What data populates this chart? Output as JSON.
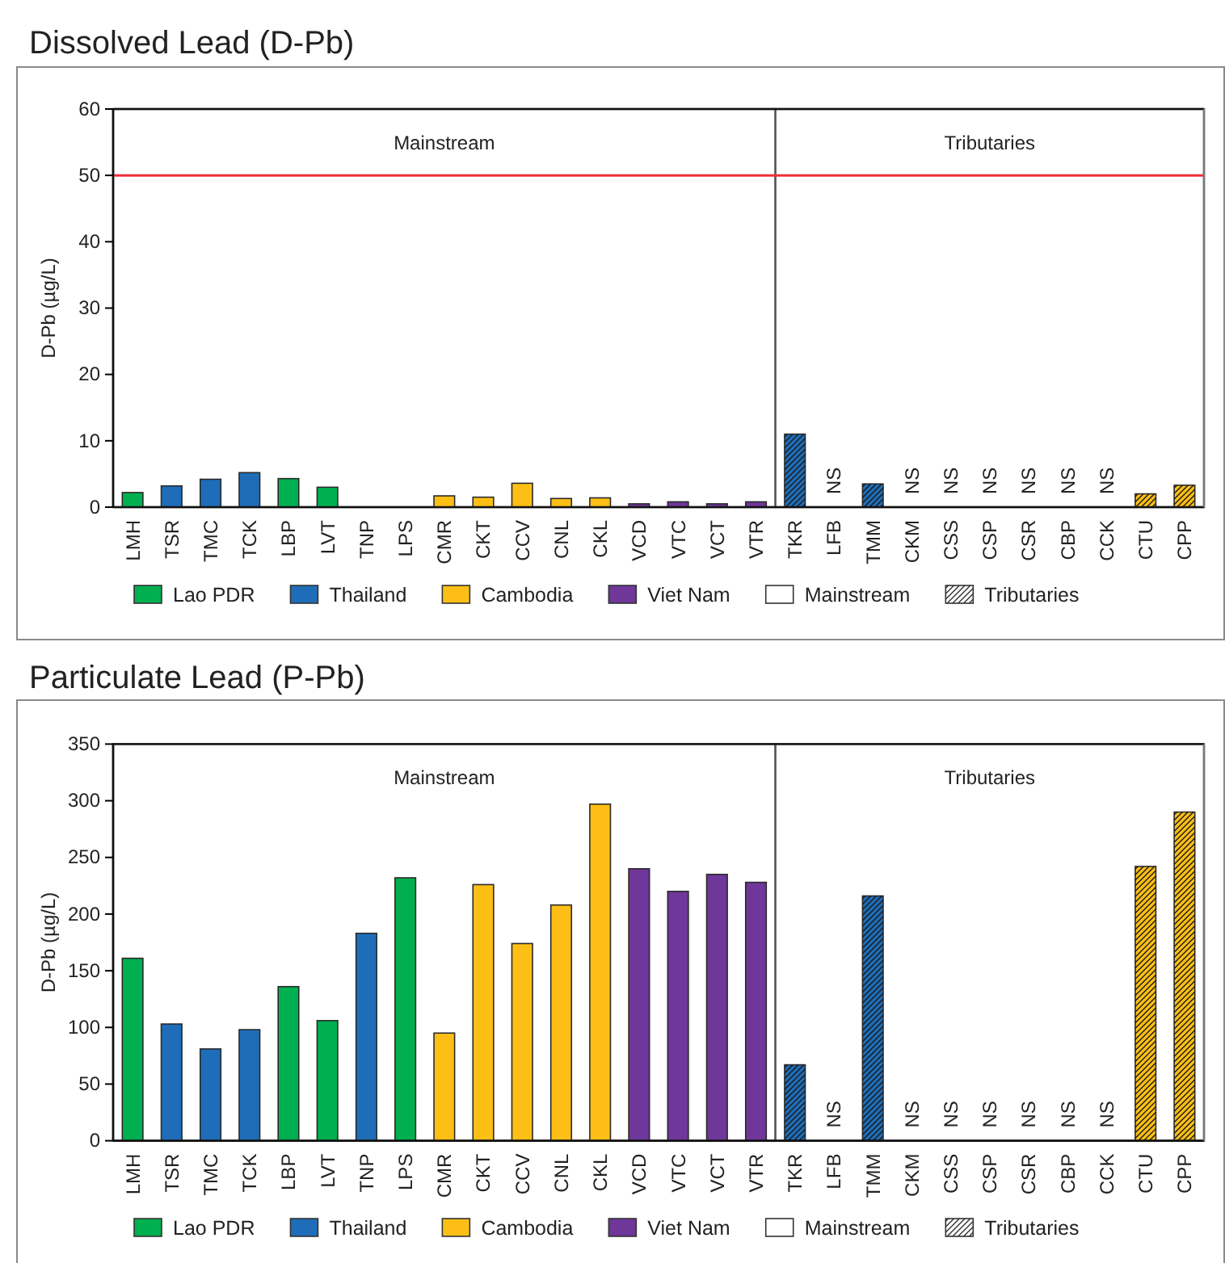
{
  "chart_data": [
    {
      "type": "bar",
      "title": "Dissolved Lead (D-Pb)",
      "ylabel": "D-Pb (µg/L)",
      "categories": [
        "LMH",
        "TSR",
        "TMC",
        "TCK",
        "LBP",
        "LVT",
        "TNP",
        "LPS",
        "CMR",
        "CKT",
        "CCV",
        "CNL",
        "CKL",
        "VCD",
        "VTC",
        "VCT",
        "VTR",
        "TKR",
        "LFB",
        "TMM",
        "CKM",
        "CSS",
        "CSP",
        "CSR",
        "CBP",
        "CCK",
        "CTU",
        "CPP"
      ],
      "series": [
        {
          "name": "Lao PDR",
          "color": "#00b050",
          "values": [
            2.2,
            null,
            null,
            null,
            4.3,
            3.0,
            null,
            null,
            null,
            null,
            null,
            null,
            null,
            null,
            null,
            null,
            null,
            null,
            null,
            null,
            null,
            null,
            null,
            null,
            null,
            null,
            null,
            null
          ],
          "value_labels": [
            null,
            null,
            null,
            null,
            null,
            null,
            null,
            null,
            null,
            null,
            null,
            null,
            null,
            null,
            null,
            null,
            null,
            null,
            "NS",
            null,
            null,
            null,
            null,
            null,
            null,
            null,
            null,
            null
          ]
        },
        {
          "name": "Thailand",
          "color": "#1f6db8",
          "values": [
            null,
            3.2,
            4.2,
            5.2,
            null,
            null,
            null,
            null,
            null,
            null,
            null,
            null,
            null,
            null,
            null,
            null,
            null,
            11.0,
            null,
            3.5,
            null,
            null,
            null,
            null,
            null,
            null,
            null,
            null
          ]
        },
        {
          "name": "Cambodia",
          "color": "#fdbf16",
          "values": [
            null,
            null,
            null,
            null,
            null,
            null,
            null,
            null,
            1.7,
            1.5,
            3.6,
            1.3,
            1.4,
            null,
            null,
            null,
            null,
            null,
            null,
            null,
            null,
            null,
            null,
            null,
            null,
            null,
            2.0,
            3.3
          ],
          "value_labels": [
            null,
            null,
            null,
            null,
            null,
            null,
            null,
            null,
            null,
            null,
            null,
            null,
            null,
            null,
            null,
            null,
            null,
            null,
            null,
            null,
            "NS",
            "NS",
            "NS",
            "NS",
            "NS",
            "NS",
            null,
            null
          ]
        },
        {
          "name": "Viet Nam",
          "color": "#6f3799",
          "values": [
            null,
            null,
            null,
            null,
            null,
            null,
            null,
            null,
            null,
            null,
            null,
            null,
            null,
            0.5,
            0.8,
            0.5,
            0.8,
            null,
            null,
            null,
            null,
            null,
            null,
            null,
            null,
            null,
            null,
            null
          ]
        }
      ],
      "stacked": true,
      "ylim": [
        0,
        60
      ],
      "yticks": [
        0,
        10,
        20,
        30,
        40,
        50,
        60
      ],
      "ref_lines": [
        {
          "axis": "y",
          "value": 50,
          "color": "#ee2f3b"
        }
      ],
      "bands": [
        {
          "axis": "x",
          "from": "LMH",
          "to": "VTR",
          "label": "Mainstream",
          "color": "#ffffff"
        },
        {
          "axis": "x",
          "from": "TKR",
          "to": "CPP",
          "label": "Tributaries",
          "color": "#ffffff"
        }
      ],
      "legend": "bottom"
    },
    {
      "type": "bar",
      "title": "Particulate Lead (P-Pb)",
      "ylabel": "D-Pb (µg/L)",
      "categories": [
        "LMH",
        "TSR",
        "TMC",
        "TCK",
        "LBP",
        "LVT",
        "TNP",
        "LPS",
        "CMR",
        "CKT",
        "CCV",
        "CNL",
        "CKL",
        "VCD",
        "VTC",
        "VCT",
        "VTR",
        "TKR",
        "LFB",
        "TMM",
        "CKM",
        "CSS",
        "CSP",
        "CSR",
        "CBP",
        "CCK",
        "CTU",
        "CPP"
      ],
      "series": [
        {
          "name": "Lao PDR",
          "color": "#00b050",
          "values": [
            161,
            null,
            null,
            null,
            136,
            106,
            null,
            232,
            null,
            null,
            null,
            null,
            null,
            null,
            null,
            null,
            null,
            null,
            null,
            null,
            null,
            null,
            null,
            null,
            null,
            null,
            null,
            null
          ],
          "value_labels": [
            null,
            null,
            null,
            null,
            null,
            null,
            null,
            null,
            null,
            null,
            null,
            null,
            null,
            null,
            null,
            null,
            null,
            null,
            "NS",
            null,
            null,
            null,
            null,
            null,
            null,
            null,
            null,
            null
          ]
        },
        {
          "name": "Thailand",
          "color": "#1f6db8",
          "values": [
            null,
            103,
            81,
            98,
            null,
            null,
            183,
            null,
            null,
            null,
            null,
            null,
            null,
            null,
            null,
            null,
            null,
            67,
            null,
            216,
            null,
            null,
            null,
            null,
            null,
            null,
            null,
            null
          ]
        },
        {
          "name": "Cambodia",
          "color": "#fdbf16",
          "values": [
            null,
            null,
            null,
            null,
            null,
            null,
            null,
            null,
            95,
            226,
            174,
            208,
            297,
            null,
            null,
            null,
            null,
            null,
            null,
            null,
            null,
            null,
            null,
            null,
            null,
            null,
            242,
            290
          ],
          "value_labels": [
            null,
            null,
            null,
            null,
            null,
            null,
            null,
            null,
            null,
            null,
            null,
            null,
            null,
            null,
            null,
            null,
            null,
            null,
            null,
            null,
            "NS",
            "NS",
            "NS",
            "NS",
            "NS",
            "NS",
            null,
            null
          ]
        },
        {
          "name": "Viet Nam",
          "color": "#6f3799",
          "values": [
            null,
            null,
            null,
            null,
            null,
            null,
            null,
            null,
            null,
            null,
            null,
            null,
            null,
            240,
            220,
            235,
            228,
            null,
            null,
            null,
            null,
            null,
            null,
            null,
            null,
            null,
            null,
            null
          ]
        }
      ],
      "stacked": true,
      "ylim": [
        0,
        350
      ],
      "yticks": [
        0,
        50,
        100,
        150,
        200,
        250,
        300,
        350
      ],
      "bands": [
        {
          "axis": "x",
          "from": "LMH",
          "to": "VTR",
          "label": "Mainstream",
          "color": "#ffffff"
        },
        {
          "axis": "x",
          "from": "TKR",
          "to": "CPP",
          "label": "Tributaries",
          "color": "#ffffff"
        }
      ],
      "legend": "bottom"
    }
  ]
}
